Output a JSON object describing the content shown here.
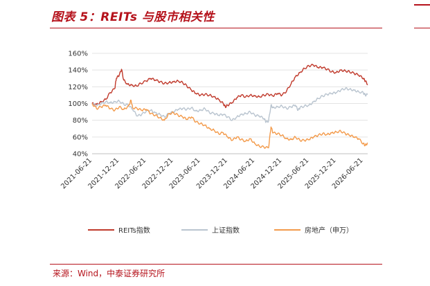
{
  "page": {
    "title": "图表 5：REITs 与股市相关性",
    "source": "来源：Wind，中泰证券研究所"
  },
  "colors": {
    "accent": "#b5121b",
    "reits": "#c0392b",
    "sse": "#b9c4cf",
    "realestate": "#f39a4a",
    "grid": "#e3e3e3"
  },
  "chart_data": {
    "type": "line",
    "title": "",
    "xlabel": "",
    "ylabel": "",
    "y_unit": "%",
    "ylim": [
      40,
      160
    ],
    "yticks": [
      40,
      60,
      80,
      100,
      120,
      140,
      160
    ],
    "ytick_labels": [
      "40%",
      "60%",
      "80%",
      "100%",
      "120%",
      "140%",
      "160%"
    ],
    "xlim": [
      "2021-06-21",
      "2026-07-21"
    ],
    "xticks": [
      "2021-06-21",
      "2021-12-21",
      "2022-06-21",
      "2022-12-21",
      "2023-06-21",
      "2023-12-21",
      "2024-06-21",
      "2024-12-21",
      "2025-06-21",
      "2025-12-21",
      "2026-06-21"
    ],
    "grid": "horizontal",
    "legend_position": "bottom",
    "series": [
      {
        "name": "REITs指数",
        "points": [
          [
            "2021-06-21",
            100
          ],
          [
            "2021-07-21",
            99
          ],
          [
            "2021-08-21",
            102
          ],
          [
            "2021-09-21",
            105
          ],
          [
            "2021-10-21",
            113
          ],
          [
            "2021-11-21",
            118
          ],
          [
            "2021-12-01",
            130
          ],
          [
            "2021-12-21",
            134
          ],
          [
            "2022-01-05",
            141
          ],
          [
            "2022-01-20",
            128
          ],
          [
            "2022-02-15",
            123
          ],
          [
            "2022-03-15",
            122
          ],
          [
            "2022-04-15",
            121
          ],
          [
            "2022-05-15",
            124
          ],
          [
            "2022-06-21",
            127
          ],
          [
            "2022-07-21",
            130
          ],
          [
            "2022-08-21",
            128
          ],
          [
            "2022-09-21",
            126
          ],
          [
            "2022-10-21",
            124
          ],
          [
            "2022-11-21",
            125
          ],
          [
            "2022-12-21",
            126
          ],
          [
            "2023-01-21",
            127
          ],
          [
            "2023-02-21",
            125
          ],
          [
            "2023-03-21",
            121
          ],
          [
            "2023-04-21",
            116
          ],
          [
            "2023-05-21",
            112
          ],
          [
            "2023-06-21",
            110
          ],
          [
            "2023-07-21",
            111
          ],
          [
            "2023-08-21",
            110
          ],
          [
            "2023-09-21",
            108
          ],
          [
            "2023-10-21",
            105
          ],
          [
            "2023-11-21",
            100
          ],
          [
            "2023-12-05",
            96
          ],
          [
            "2023-12-21",
            98
          ],
          [
            "2024-01-21",
            101
          ],
          [
            "2024-02-21",
            107
          ],
          [
            "2024-03-21",
            110
          ],
          [
            "2024-04-21",
            108
          ],
          [
            "2024-05-21",
            110
          ],
          [
            "2024-06-21",
            109
          ],
          [
            "2024-07-21",
            108
          ],
          [
            "2024-08-21",
            110
          ],
          [
            "2024-09-21",
            111
          ],
          [
            "2024-10-21",
            109
          ],
          [
            "2024-11-21",
            112
          ],
          [
            "2024-12-21",
            110
          ],
          [
            "2025-01-21",
            115
          ],
          [
            "2025-02-21",
            124
          ],
          [
            "2025-03-21",
            132
          ],
          [
            "2025-04-21",
            137
          ],
          [
            "2025-05-21",
            142
          ],
          [
            "2025-06-21",
            145
          ],
          [
            "2025-07-21",
            146
          ],
          [
            "2025-08-21",
            143
          ],
          [
            "2025-09-21",
            143
          ],
          [
            "2025-10-21",
            141
          ],
          [
            "2025-11-21",
            138
          ],
          [
            "2025-12-21",
            137
          ],
          [
            "2026-01-21",
            140
          ],
          [
            "2026-02-21",
            139
          ],
          [
            "2026-03-21",
            138
          ],
          [
            "2026-04-21",
            136
          ],
          [
            "2026-05-21",
            134
          ],
          [
            "2026-06-21",
            130
          ],
          [
            "2026-07-05",
            127
          ],
          [
            "2026-07-21",
            123
          ]
        ]
      },
      {
        "name": "上证指数",
        "points": [
          [
            "2021-06-21",
            100
          ],
          [
            "2021-07-21",
            97
          ],
          [
            "2021-08-21",
            100
          ],
          [
            "2021-09-21",
            102
          ],
          [
            "2021-10-21",
            101
          ],
          [
            "2021-11-21",
            102
          ],
          [
            "2021-12-21",
            103
          ],
          [
            "2022-01-21",
            99
          ],
          [
            "2022-02-21",
            98
          ],
          [
            "2022-03-21",
            93
          ],
          [
            "2022-04-21",
            85
          ],
          [
            "2022-05-21",
            87
          ],
          [
            "2022-06-21",
            91
          ],
          [
            "2022-07-21",
            92
          ],
          [
            "2022-08-21",
            89
          ],
          [
            "2022-09-21",
            87
          ],
          [
            "2022-10-21",
            84
          ],
          [
            "2022-11-21",
            88
          ],
          [
            "2022-12-21",
            90
          ],
          [
            "2023-01-21",
            93
          ],
          [
            "2023-02-21",
            94
          ],
          [
            "2023-03-21",
            93
          ],
          [
            "2023-04-21",
            95
          ],
          [
            "2023-05-21",
            91
          ],
          [
            "2023-06-21",
            92
          ],
          [
            "2023-07-21",
            94
          ],
          [
            "2023-08-21",
            89
          ],
          [
            "2023-09-21",
            88
          ],
          [
            "2023-10-21",
            86
          ],
          [
            "2023-11-21",
            87
          ],
          [
            "2023-12-21",
            84
          ],
          [
            "2024-01-21",
            80
          ],
          [
            "2024-02-21",
            84
          ],
          [
            "2024-03-21",
            87
          ],
          [
            "2024-04-21",
            88
          ],
          [
            "2024-05-21",
            90
          ],
          [
            "2024-06-21",
            86
          ],
          [
            "2024-07-21",
            85
          ],
          [
            "2024-08-21",
            82
          ],
          [
            "2024-09-05",
            78
          ],
          [
            "2024-09-21",
            79
          ],
          [
            "2024-10-08",
            98
          ],
          [
            "2024-10-21",
            95
          ],
          [
            "2024-11-21",
            96
          ],
          [
            "2024-12-21",
            97
          ],
          [
            "2025-01-21",
            94
          ],
          [
            "2025-02-21",
            96
          ],
          [
            "2025-03-21",
            98
          ],
          [
            "2025-04-08",
            92
          ],
          [
            "2025-04-21",
            95
          ],
          [
            "2025-05-21",
            97
          ],
          [
            "2025-06-21",
            98
          ],
          [
            "2025-07-21",
            102
          ],
          [
            "2025-08-21",
            106
          ],
          [
            "2025-09-21",
            109
          ],
          [
            "2025-10-21",
            111
          ],
          [
            "2025-11-21",
            112
          ],
          [
            "2025-12-21",
            113
          ],
          [
            "2026-01-21",
            116
          ],
          [
            "2026-02-21",
            118
          ],
          [
            "2026-03-21",
            117
          ],
          [
            "2026-04-21",
            116
          ],
          [
            "2026-05-21",
            114
          ],
          [
            "2026-06-21",
            113
          ],
          [
            "2026-07-05",
            110
          ],
          [
            "2026-07-21",
            111
          ]
        ]
      },
      {
        "name": "房地产（申万）",
        "points": [
          [
            "2021-06-21",
            100
          ],
          [
            "2021-07-21",
            94
          ],
          [
            "2021-08-21",
            96
          ],
          [
            "2021-09-21",
            98
          ],
          [
            "2021-10-21",
            94
          ],
          [
            "2021-11-21",
            92
          ],
          [
            "2021-12-21",
            96
          ],
          [
            "2022-01-21",
            93
          ],
          [
            "2022-02-21",
            97
          ],
          [
            "2022-03-10",
            104
          ],
          [
            "2022-03-21",
            95
          ],
          [
            "2022-04-21",
            94
          ],
          [
            "2022-05-21",
            92
          ],
          [
            "2022-06-21",
            93
          ],
          [
            "2022-07-21",
            88
          ],
          [
            "2022-08-21",
            86
          ],
          [
            "2022-09-21",
            83
          ],
          [
            "2022-10-21",
            80
          ],
          [
            "2022-11-21",
            88
          ],
          [
            "2022-12-21",
            89
          ],
          [
            "2023-01-21",
            86
          ],
          [
            "2023-02-21",
            84
          ],
          [
            "2023-03-21",
            81
          ],
          [
            "2023-04-21",
            84
          ],
          [
            "2023-05-21",
            78
          ],
          [
            "2023-06-21",
            76
          ],
          [
            "2023-07-21",
            74
          ],
          [
            "2023-08-21",
            70
          ],
          [
            "2023-09-21",
            68
          ],
          [
            "2023-10-21",
            64
          ],
          [
            "2023-11-21",
            65
          ],
          [
            "2023-12-21",
            60
          ],
          [
            "2024-01-21",
            56
          ],
          [
            "2024-02-21",
            60
          ],
          [
            "2024-03-21",
            57
          ],
          [
            "2024-04-21",
            55
          ],
          [
            "2024-05-21",
            58
          ],
          [
            "2024-06-21",
            52
          ],
          [
            "2024-07-21",
            49
          ],
          [
            "2024-08-21",
            48
          ],
          [
            "2024-09-21",
            47
          ],
          [
            "2024-10-08",
            72
          ],
          [
            "2024-10-21",
            65
          ],
          [
            "2024-11-21",
            64
          ],
          [
            "2024-12-21",
            62
          ],
          [
            "2025-01-21",
            58
          ],
          [
            "2025-02-21",
            57
          ],
          [
            "2025-03-21",
            60
          ],
          [
            "2025-04-21",
            56
          ],
          [
            "2025-05-21",
            56
          ],
          [
            "2025-06-21",
            57
          ],
          [
            "2025-07-21",
            60
          ],
          [
            "2025-08-21",
            62
          ],
          [
            "2025-09-21",
            64
          ],
          [
            "2025-10-21",
            63
          ],
          [
            "2025-11-21",
            65
          ],
          [
            "2025-12-21",
            66
          ],
          [
            "2026-01-21",
            67
          ],
          [
            "2026-02-21",
            64
          ],
          [
            "2026-03-21",
            62
          ],
          [
            "2026-04-21",
            60
          ],
          [
            "2026-05-21",
            58
          ],
          [
            "2026-06-21",
            52
          ],
          [
            "2026-07-05",
            50
          ],
          [
            "2026-07-21",
            53
          ]
        ]
      }
    ]
  }
}
